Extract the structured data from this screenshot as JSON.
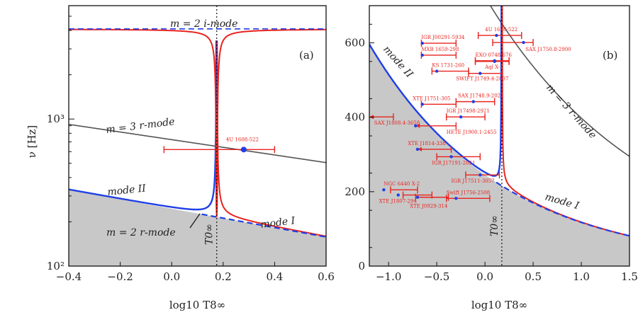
{
  "chart_data": [
    {
      "panel_label": "(a)",
      "type": "line",
      "xlabel": "log10 T8∞",
      "ylabel": "ν [Hz]",
      "xlim": [
        -0.4,
        0.6
      ],
      "ylim": [
        100,
        5900
      ],
      "yscale": "log",
      "x_ticks": [
        "-0.4",
        "-0.2",
        "0.0",
        "0.2",
        "0.4",
        "0.6"
      ],
      "y_ticks": [
        "10²",
        "10³"
      ],
      "T0_label": "T0∞",
      "T0": 0.175,
      "curve_labels": {
        "i_mode": "m = 2 i-mode",
        "r3": "m = 3 r-mode",
        "modeII": "mode II",
        "modeI": "mode I",
        "r2": "m = 2 r-mode"
      },
      "i_mode_hz": 4100,
      "source": {
        "name": "4U 1608-522",
        "x": 0.28,
        "nu": 620,
        "xmin": -0.03,
        "xmax": 0.4
      }
    },
    {
      "panel_label": "(b)",
      "type": "scatter",
      "xlabel": "log10 T8∞",
      "xlim": [
        -1.2,
        1.5
      ],
      "ylim": [
        0,
        700
      ],
      "yscale": "linear",
      "x_ticks": [
        "-1.0",
        "-0.5",
        "0.0",
        "0.5",
        "1.0",
        "1.5"
      ],
      "y_ticks": [
        "0",
        "200",
        "400",
        "600"
      ],
      "T0_label": "T0∞",
      "T0": 0.175,
      "curve_labels": {
        "r3": "m = 3 r-mode",
        "modeII": "mode II",
        "modeI": "mode I"
      },
      "sources": [
        {
          "name": "4U 1608-522",
          "x": 0.12,
          "nu": 620,
          "xmin": -0.07,
          "xmax": 0.38
        },
        {
          "name": "SAX J1750.8-2900",
          "x": 0.4,
          "nu": 601,
          "xmin": 0.08,
          "xmax": 0.5
        },
        {
          "name": "IGR J00291-5934",
          "x": -0.65,
          "nu": 599,
          "xmin": -0.66,
          "xmax": -0.3
        },
        {
          "name": "MXB 1659-298",
          "x": -0.65,
          "nu": 567,
          "xmin": -0.66,
          "xmax": -0.3
        },
        {
          "name": "EXO 0748-676",
          "x": 0.1,
          "nu": 552,
          "xmin": -0.1,
          "xmax": 0.25
        },
        {
          "name": "Aql X-1",
          "x": 0.1,
          "nu": 550,
          "xmin": -0.1,
          "xmax": 0.25
        },
        {
          "name": "KS 1731-260",
          "x": -0.5,
          "nu": 524,
          "xmin": -0.55,
          "xmax": -0.17
        },
        {
          "name": "SWIFT J1749.4-2807",
          "x": -0.05,
          "nu": 518,
          "xmin": -0.17,
          "xmax": 0.18
        },
        {
          "name": "XTE J1751-305",
          "x": -0.65,
          "nu": 435,
          "xmin": -0.66,
          "xmax": -0.3
        },
        {
          "name": "SAX J1748.9-2021",
          "x": -0.12,
          "nu": 442,
          "xmin": -0.3,
          "xmax": 0.1
        },
        {
          "name": "IGR J17498-2921",
          "x": -0.25,
          "nu": 401,
          "xmin": -0.4,
          "xmax": 0.0
        },
        {
          "name": "SAX J1808.4-3658",
          "x": null,
          "nu": 401,
          "xmin": -1.2,
          "xmax": -0.95
        },
        {
          "name": "HETE J1900.1-2455",
          "x": -0.72,
          "nu": 377,
          "xmin": -0.72,
          "xmax": -0.3
        },
        {
          "name": "XTE J1814-338",
          "x": -0.7,
          "nu": 314,
          "xmin": -0.7,
          "xmax": -0.35
        },
        {
          "name": "IGR J17191-2821",
          "x": -0.35,
          "nu": 294,
          "xmin": -0.5,
          "xmax": -0.05
        },
        {
          "name": "IGR J17511-3057",
          "x": -0.05,
          "nu": 245,
          "xmin": -0.2,
          "xmax": 0.15
        },
        {
          "name": "NGC 6440 X-2",
          "x": -1.05,
          "nu": 205,
          "xmin": -0.98,
          "xmax": -0.7
        },
        {
          "name": "XTE J1807-294",
          "x": -0.9,
          "nu": 191,
          "xmin": -0.85,
          "xmax": -0.55
        },
        {
          "name": "XTE J0929-314",
          "x": -0.7,
          "nu": 185,
          "xmin": -0.72,
          "xmax": -0.38
        },
        {
          "name": "Swift J1756-2508",
          "x": -0.3,
          "nu": 182,
          "xmin": -0.4,
          "xmax": 0.05
        }
      ]
    }
  ],
  "colors": {
    "modeII": "#1f3fe8",
    "modeI": "#e8231f",
    "r_mode": "#555555",
    "shade": "#c8c8c8",
    "source": "#e8231f",
    "point": "#1f3fe8"
  }
}
